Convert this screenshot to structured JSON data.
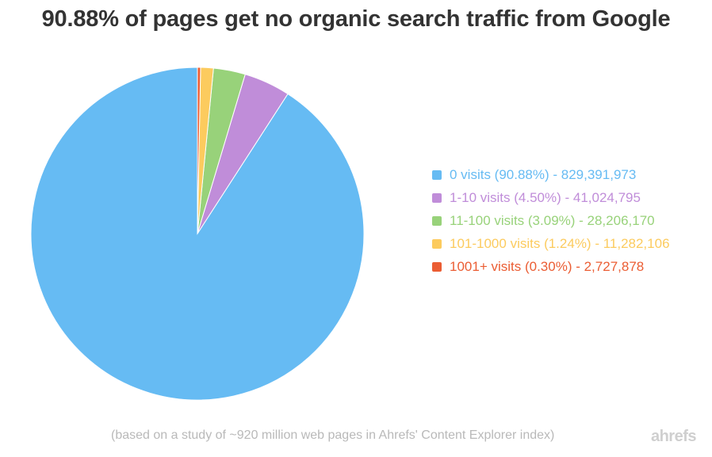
{
  "chart_data": {
    "type": "pie",
    "title": "90.88% of pages get no organic search traffic from Google",
    "slices": [
      {
        "label": "0 visits (90.88%) - 829,391,973",
        "value": 90.88,
        "color": "#66bbf3"
      },
      {
        "label": "1-10 visits (4.50%) - 41,024,795",
        "value": 4.5,
        "color": "#c08dd9"
      },
      {
        "label": "11-100 visits (3.09%) - 28,206,170",
        "value": 3.09,
        "color": "#98d27a"
      },
      {
        "label": "101-1000 visits (1.24%) - 11,282,106",
        "value": 1.24,
        "color": "#fccb5e"
      },
      {
        "label": "1001+ visits (0.30%) - 2,727,878",
        "value": 0.3,
        "color": "#eb5d33"
      }
    ],
    "start": "12 o'clock",
    "direction": "counterclockwise",
    "legend_position": "right"
  },
  "footnote": "(based on a study of ~920 million web pages in Ahrefs' Content Explorer index)",
  "logo_text": "ahrefs"
}
